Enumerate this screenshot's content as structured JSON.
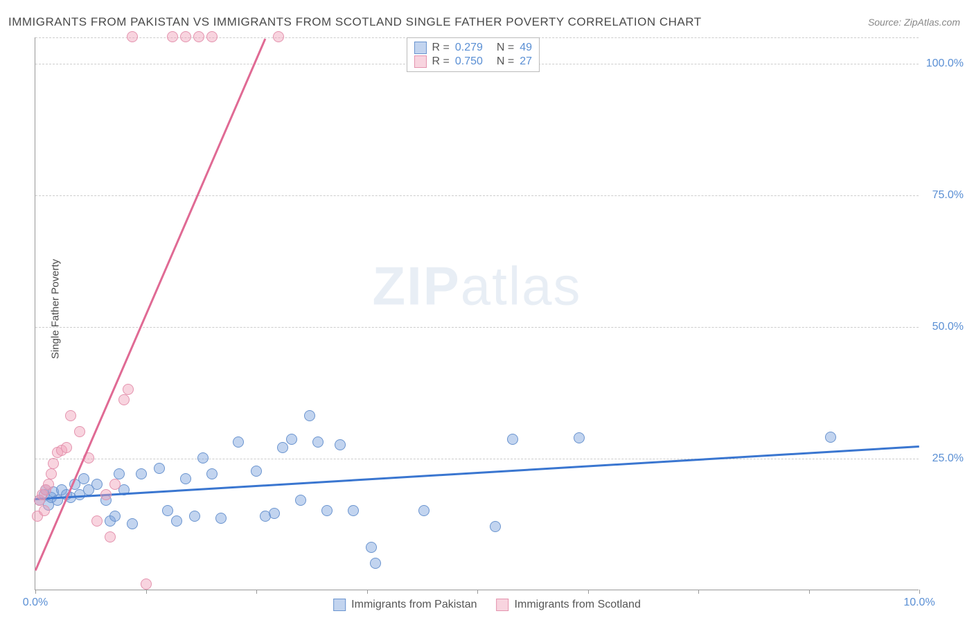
{
  "title": "IMMIGRANTS FROM PAKISTAN VS IMMIGRANTS FROM SCOTLAND SINGLE FATHER POVERTY CORRELATION CHART",
  "source": "Source: ZipAtlas.com",
  "y_axis_label": "Single Father Poverty",
  "watermark": "ZIPatlas",
  "chart": {
    "type": "scatter",
    "xlim": [
      0,
      10
    ],
    "ylim": [
      0,
      105
    ],
    "x_ticks": [
      0,
      1.25,
      2.5,
      3.75,
      5,
      6.25,
      7.5,
      8.75,
      10
    ],
    "x_tick_labels": {
      "0": "0.0%",
      "10": "10.0%"
    },
    "y_gridlines": [
      25,
      50,
      75,
      100,
      105
    ],
    "y_tick_labels": {
      "25": "25.0%",
      "50": "50.0%",
      "75": "75.0%",
      "100": "100.0%"
    },
    "background_color": "#ffffff",
    "grid_color": "#cccccc",
    "axis_color": "#999999",
    "tick_label_color": "#5a8fd4",
    "point_radius": 8,
    "series": [
      {
        "name": "Immigrants from Pakistan",
        "fill_color": "rgba(120,160,220,0.45)",
        "stroke_color": "#6a94cf",
        "trend_color": "#3a76d0",
        "R": "0.279",
        "N": "49",
        "trend": {
          "x1": 0,
          "y1": 17.5,
          "x2": 10,
          "y2": 27.5
        },
        "points": [
          [
            0.05,
            17
          ],
          [
            0.1,
            18
          ],
          [
            0.12,
            19
          ],
          [
            0.15,
            16
          ],
          [
            0.18,
            17.5
          ],
          [
            0.2,
            18.5
          ],
          [
            0.25,
            17
          ],
          [
            0.3,
            19
          ],
          [
            0.35,
            18
          ],
          [
            0.4,
            17.5
          ],
          [
            0.45,
            20
          ],
          [
            0.5,
            18
          ],
          [
            0.55,
            21
          ],
          [
            0.6,
            19
          ],
          [
            0.7,
            20
          ],
          [
            0.8,
            17
          ],
          [
            0.85,
            13
          ],
          [
            0.9,
            14
          ],
          [
            0.95,
            22
          ],
          [
            1.0,
            19
          ],
          [
            1.1,
            12.5
          ],
          [
            1.2,
            22
          ],
          [
            1.4,
            23
          ],
          [
            1.5,
            15
          ],
          [
            1.6,
            13
          ],
          [
            1.7,
            21
          ],
          [
            1.8,
            14
          ],
          [
            1.9,
            25
          ],
          [
            2.0,
            22
          ],
          [
            2.1,
            13.5
          ],
          [
            2.3,
            28
          ],
          [
            2.5,
            22.5
          ],
          [
            2.6,
            14
          ],
          [
            2.7,
            14.5
          ],
          [
            2.8,
            27
          ],
          [
            2.9,
            28.5
          ],
          [
            3.0,
            17
          ],
          [
            3.1,
            33
          ],
          [
            3.2,
            28
          ],
          [
            3.3,
            15
          ],
          [
            3.45,
            27.5
          ],
          [
            3.6,
            15
          ],
          [
            3.8,
            8
          ],
          [
            3.85,
            5
          ],
          [
            4.4,
            15
          ],
          [
            5.2,
            12
          ],
          [
            5.4,
            28.5
          ],
          [
            6.15,
            28.8
          ],
          [
            9.0,
            29
          ]
        ]
      },
      {
        "name": "Immigrants from Scotland",
        "fill_color": "rgba(240,160,185,0.45)",
        "stroke_color": "#e493ae",
        "trend_color": "#e06a94",
        "R": "0.750",
        "N": "27",
        "trend": {
          "x1": 0,
          "y1": 4,
          "x2": 2.6,
          "y2": 105
        },
        "points": [
          [
            0.02,
            14
          ],
          [
            0.05,
            17
          ],
          [
            0.08,
            18
          ],
          [
            0.1,
            15
          ],
          [
            0.12,
            19
          ],
          [
            0.15,
            20
          ],
          [
            0.18,
            22
          ],
          [
            0.2,
            24
          ],
          [
            0.25,
            26
          ],
          [
            0.3,
            26.5
          ],
          [
            0.35,
            27
          ],
          [
            0.4,
            33
          ],
          [
            0.5,
            30
          ],
          [
            0.6,
            25
          ],
          [
            0.7,
            13
          ],
          [
            0.8,
            18
          ],
          [
            0.85,
            10
          ],
          [
            0.9,
            20
          ],
          [
            1.0,
            36
          ],
          [
            1.05,
            38
          ],
          [
            1.1,
            105
          ],
          [
            1.25,
            1
          ],
          [
            1.55,
            105
          ],
          [
            1.7,
            105
          ],
          [
            1.85,
            105
          ],
          [
            2.0,
            105
          ],
          [
            2.75,
            105
          ]
        ]
      }
    ]
  },
  "legend_bottom": [
    {
      "label": "Immigrants from Pakistan",
      "fill": "rgba(120,160,220,0.45)",
      "stroke": "#6a94cf"
    },
    {
      "label": "Immigrants from Scotland",
      "fill": "rgba(240,160,185,0.45)",
      "stroke": "#e493ae"
    }
  ]
}
